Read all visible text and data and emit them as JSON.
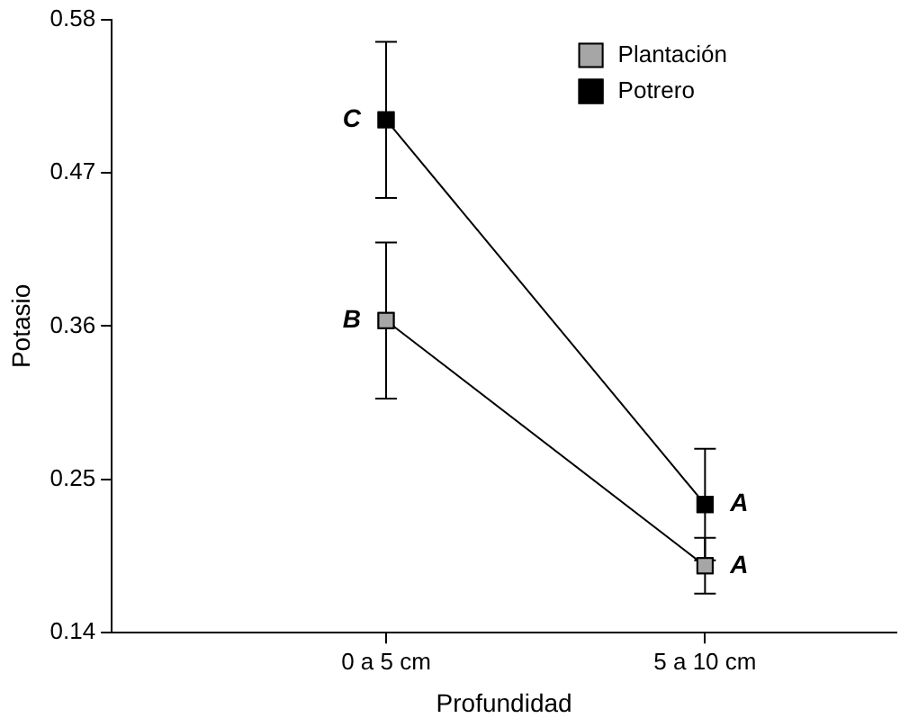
{
  "chart_data": {
    "type": "line",
    "xlabel": "Profundidad",
    "ylabel": "Potasio",
    "categories": [
      "0 a 5 cm",
      "5 a 10 cm"
    ],
    "series": [
      {
        "name": "Plantación",
        "color": "#a6a6a6",
        "values": [
          0.364,
          0.188
        ],
        "errors": [
          0.056,
          0.02
        ]
      },
      {
        "name": "Potrero",
        "color": "#000000",
        "values": [
          0.508,
          0.232
        ],
        "errors": [
          0.056,
          0.04
        ]
      }
    ],
    "ylim": [
      0.14,
      0.58
    ],
    "yticks": [
      0.14,
      0.25,
      0.36,
      0.47,
      0.58
    ],
    "annotations": [
      {
        "text": "B",
        "x": "0 a 5 cm",
        "y": 0.364
      },
      {
        "text": "C",
        "x": "0 a 5 cm",
        "y": 0.508
      },
      {
        "text": "A",
        "x": "5 a 10 cm",
        "y": 0.188
      },
      {
        "text": "A",
        "x": "5 a 10 cm",
        "y": 0.232
      }
    ],
    "marker": "square",
    "line_style": "solid",
    "grid": false,
    "legend": "top right"
  }
}
